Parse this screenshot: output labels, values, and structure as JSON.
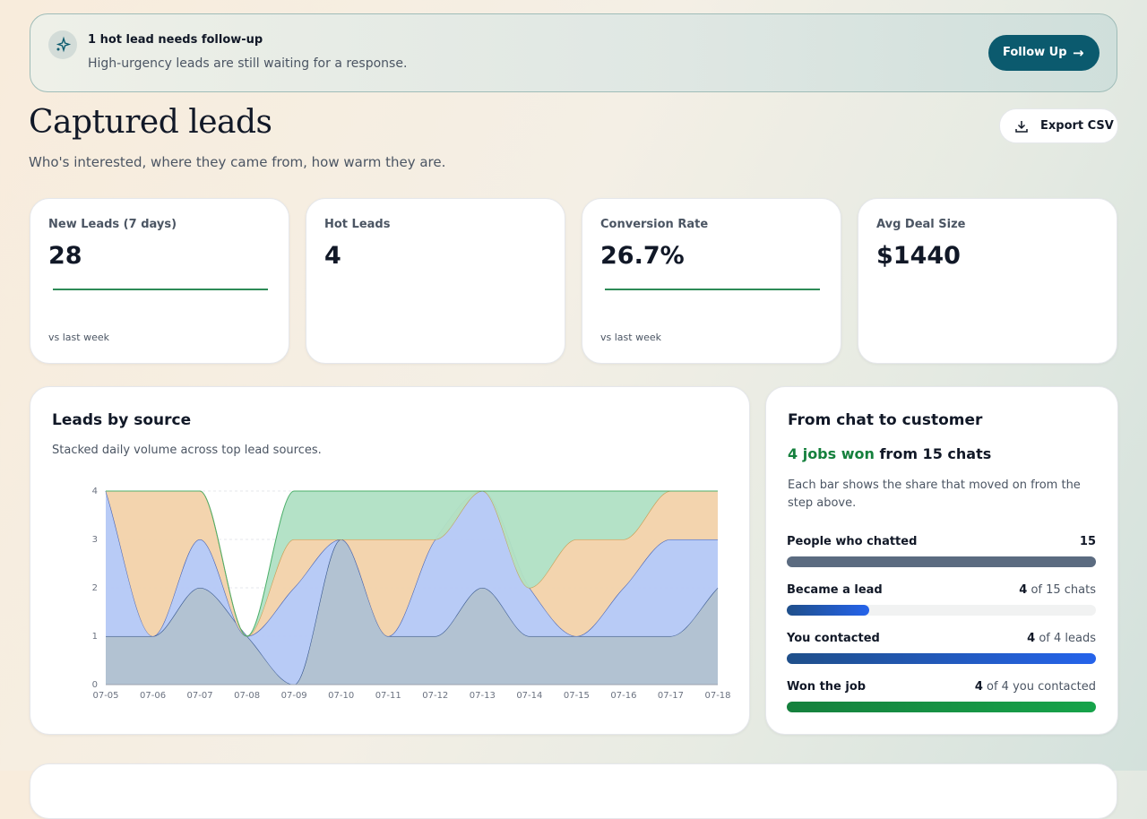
{
  "banner": {
    "title": "1 hot lead needs follow-up",
    "text": "High-urgency leads are still waiting for a response.",
    "button": "Follow Up"
  },
  "header": {
    "title": "Captured leads",
    "subtitle": "Who's interested, where they came from, how warm they are.",
    "export": "Export CSV"
  },
  "kpis": [
    {
      "label": "New Leads (7 days)",
      "value": "28",
      "note": "vs last week"
    },
    {
      "label": "Hot Leads",
      "value": "4"
    },
    {
      "label": "Conversion Rate",
      "value": "26.7%",
      "note": "vs last week"
    },
    {
      "label": "Avg Deal Size",
      "value": "$1440"
    }
  ],
  "source_card": {
    "title": "Leads by source",
    "subtitle": "Stacked daily volume across top lead sources."
  },
  "chart_data": {
    "type": "stacked_area",
    "categories": [
      "07-05",
      "07-06",
      "07-07",
      "07-08",
      "07-09",
      "07-10",
      "07-11",
      "07-12",
      "07-13",
      "07-14",
      "07-15",
      "07-16",
      "07-17",
      "07-18"
    ],
    "series": [
      {
        "color": "#aebfd0",
        "line": "#2f4f86",
        "values": [
          1,
          1,
          2,
          1,
          0,
          3,
          1,
          1,
          2,
          1,
          1,
          1,
          1,
          2
        ]
      },
      {
        "color": "#b4c8f6",
        "line": "#3b5bb5",
        "values": [
          3,
          0,
          1,
          0,
          2,
          0,
          0,
          2,
          2,
          1,
          0,
          1,
          2,
          1
        ]
      },
      {
        "color": "#f2d2aa",
        "line": "#c9994c",
        "values": [
          0,
          3,
          1,
          0,
          1,
          0,
          2,
          0,
          0,
          0,
          2,
          1,
          1,
          1
        ]
      },
      {
        "color": "#b0e0c4",
        "line": "#4caf6a",
        "values": [
          0,
          0,
          0,
          0,
          1,
          1,
          1,
          1,
          0,
          2,
          1,
          1,
          0,
          0
        ]
      }
    ],
    "ylim": [
      0,
      4
    ],
    "yticks": [
      0,
      1,
      2,
      3,
      4
    ],
    "grid": true
  },
  "funnel": {
    "title": "From chat to customer",
    "headline_won": "4 jobs won",
    "headline_rest": "from 15 chats",
    "description": "Each bar shows the share that moved on from the step above.",
    "steps": [
      {
        "label": "People who chatted",
        "count": 15,
        "color": "#5b6b80"
      },
      {
        "label": "Became a lead",
        "count": 4,
        "detail": "of 15 chats",
        "color": "#2563eb"
      },
      {
        "label": "You contacted",
        "count": 4,
        "detail": "of 4 leads",
        "color": "#2563eb"
      },
      {
        "label": "Won the job",
        "count": 4,
        "detail": "of 4 you contacted",
        "color": "#16a34a"
      }
    ]
  }
}
